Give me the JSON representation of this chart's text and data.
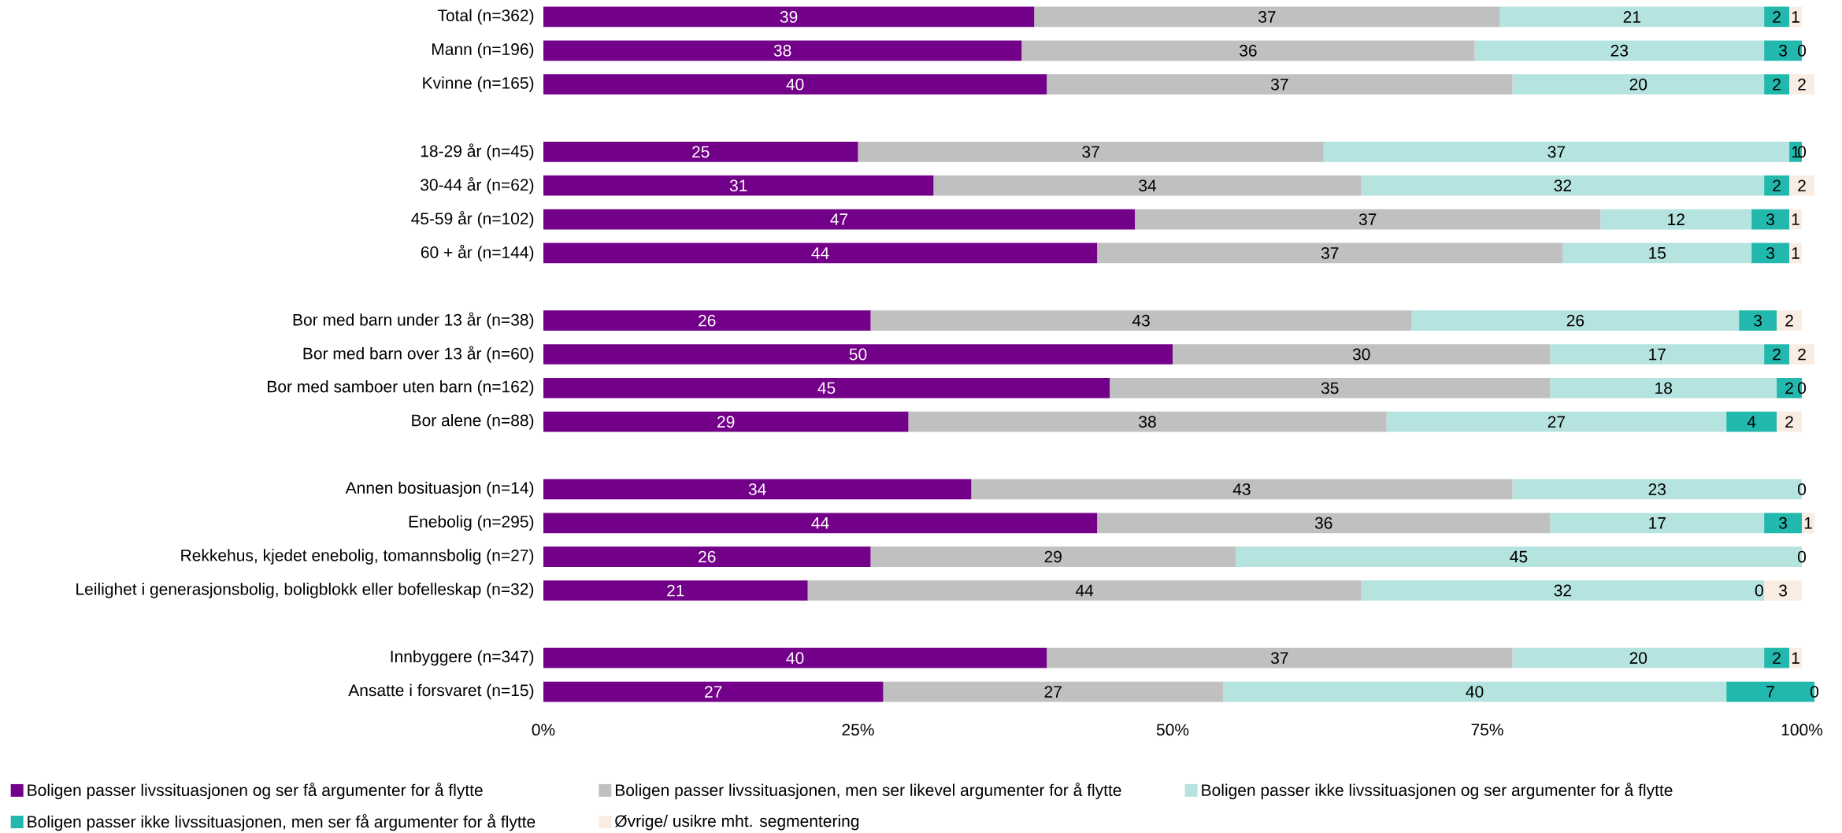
{
  "chart_data": {
    "type": "bar",
    "orientation": "horizontal",
    "stacked": true,
    "data_labels": true,
    "legend": "bottom",
    "grid": false,
    "categories": [
      "Total (n=362)",
      "Mann (n=196)",
      "Kvinne (n=165)",
      null,
      "18-29 år (n=45)",
      "30-44 år (n=62)",
      "45-59 år (n=102)",
      "60 + år (n=144)",
      null,
      "Bor med barn under 13 år (n=38)",
      "Bor med barn over 13 år (n=60)",
      "Bor med samboer uten barn (n=162)",
      "Bor alene (n=88)",
      null,
      "Annen bosituasjon (n=14)",
      "Enebolig (n=295)",
      "Rekkehus, kjedet enebolig, tomannsbolig (n=27)",
      "Leilighet i generasjonsbolig, boligblokk eller bofelleskap (n=32)",
      null,
      "Innbyggere (n=347)",
      "Ansatte i forsvaret (n=15)"
    ],
    "xlim": [
      0,
      101
    ],
    "xticks": [
      {
        "value": 0,
        "label": "0%"
      },
      {
        "value": 25,
        "label": "25%"
      },
      {
        "value": 50,
        "label": "50%"
      },
      {
        "value": 75,
        "label": "75%"
      },
      {
        "value": 100,
        "label": "100%"
      }
    ],
    "series": [
      {
        "name": "Boligen passer livssituasjonen og ser få argumenter for å flytte",
        "color": "#730088",
        "values": [
          39,
          38,
          40,
          null,
          25,
          31,
          47,
          44,
          null,
          26,
          50,
          45,
          29,
          null,
          34,
          44,
          26,
          21,
          null,
          40,
          27
        ]
      },
      {
        "name": "Boligen passer livssituasjonen, men ser likevel argumenter for å flytte",
        "color": "#c0c0c0",
        "values": [
          37,
          36,
          37,
          null,
          37,
          34,
          37,
          37,
          null,
          43,
          30,
          35,
          38,
          null,
          43,
          36,
          29,
          44,
          null,
          37,
          27
        ]
      },
      {
        "name": "Boligen passer ikke livssituasjonen og ser argumenter for å flytte",
        "color": "#b5e3df",
        "values": [
          21,
          23,
          20,
          null,
          37,
          32,
          12,
          15,
          null,
          26,
          17,
          18,
          27,
          null,
          23,
          17,
          45,
          32,
          null,
          20,
          40
        ]
      },
      {
        "name": "Boligen passer ikke livssituasjonen, men ser få argumenter for å flytte",
        "color": "#22b8ad",
        "values": [
          2,
          3,
          2,
          null,
          1,
          2,
          3,
          3,
          null,
          3,
          2,
          2,
          4,
          null,
          0,
          3,
          0,
          0,
          null,
          2,
          7
        ],
        "value_labels": [
          "2",
          "3",
          "2",
          null,
          "1",
          "2",
          "3",
          "3",
          null,
          "3",
          "2",
          "2",
          "4",
          null,
          null,
          "3",
          null,
          "0",
          null,
          "2",
          "7"
        ]
      },
      {
        "name": "Øvrige/ usikre mht. segmentering",
        "color": "#f9ece2",
        "values": [
          1,
          0,
          2,
          null,
          0,
          2,
          1,
          1,
          null,
          2,
          2,
          0,
          2,
          null,
          0,
          1,
          0,
          3,
          null,
          1,
          0
        ]
      }
    ]
  }
}
